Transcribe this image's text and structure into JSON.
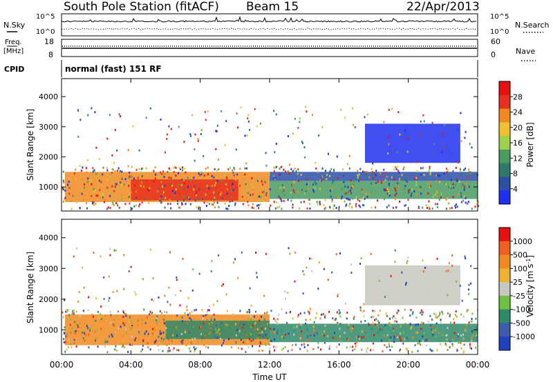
{
  "header": {
    "station": "South Pole Station (fitACF)",
    "beam": "Beam 15",
    "date": "22/Apr/2013"
  },
  "top_panel": {
    "left_label": "N.Sky",
    "right_label": "N.Search",
    "left_ticks": [
      "10^5",
      "10^0"
    ],
    "right_ticks": [
      "10^5",
      "10^0"
    ]
  },
  "freq_panel": {
    "left_label": "Freq.",
    "left_unit": "[MHz]",
    "right_label": "Nave",
    "left_ticks": [
      "18",
      "8"
    ],
    "right_ticks": [
      "60",
      "0"
    ]
  },
  "cpid": {
    "label": "CPID",
    "value": "normal (fast) 151 RF"
  },
  "chart_data": [
    {
      "type": "heatmap",
      "title": "",
      "ylabel": "Slant Range [km]",
      "xlabel": "",
      "yticks": [
        "1000",
        "2000",
        "3000",
        "4000"
      ],
      "ylim": [
        200,
        4600
      ],
      "xlim_hours": [
        0,
        24
      ],
      "colorbar_label": "Power [dB]",
      "colorbar_ticks": [
        "4",
        "8",
        "12",
        "16",
        "20",
        "24",
        "28"
      ],
      "colorbar_colors": [
        "#1e2ff0",
        "#2d4fa8",
        "#2e7a6a",
        "#4a9a60",
        "#9fd24a",
        "#f0c030",
        "#f08a20",
        "#e83020",
        "#e81010"
      ],
      "bands": [
        {
          "t0": 0.2,
          "t1": 12.0,
          "r0": 500,
          "r1": 1500,
          "color": "#f08a20"
        },
        {
          "t0": 4.0,
          "t1": 10.2,
          "r0": 550,
          "r1": 1250,
          "color": "#e83020"
        },
        {
          "t0": 12.0,
          "t1": 24.0,
          "r0": 600,
          "r1": 1200,
          "color": "#4a9a60"
        },
        {
          "t0": 12.0,
          "t1": 24.0,
          "r0": 1200,
          "r1": 1500,
          "color": "#2d4fa8"
        },
        {
          "t0": 17.5,
          "t1": 23.0,
          "r0": 1800,
          "r1": 3100,
          "color": "#1e2ff0"
        }
      ]
    },
    {
      "type": "heatmap",
      "title": "",
      "ylabel": "Slant Range [km]",
      "xlabel": "Time UT",
      "xticks": [
        "00:00",
        "04:00",
        "08:00",
        "12:00",
        "16:00",
        "20:00",
        "00:00"
      ],
      "yticks": [
        "1000",
        "2000",
        "3000",
        "4000"
      ],
      "ylim": [
        200,
        4600
      ],
      "xlim_hours": [
        0,
        24
      ],
      "colorbar_label": "Velocity [m s^-1]",
      "colorbar_ticks": [
        "1000",
        "500",
        "100",
        "25",
        "-25",
        "-100",
        "-500",
        "-1000"
      ],
      "colorbar_colors": [
        "#2040c0",
        "#3c5cb0",
        "#2f8a6a",
        "#70c040",
        "#c8c8c0",
        "#f0b030",
        "#f08a20",
        "#f06020",
        "#e81010"
      ],
      "bands": [
        {
          "t0": 0.2,
          "t1": 12.0,
          "r0": 500,
          "r1": 1500,
          "color": "#f08a20"
        },
        {
          "t0": 6.0,
          "t1": 12.0,
          "r0": 700,
          "r1": 1300,
          "color": "#2f8a6a"
        },
        {
          "t0": 12.0,
          "t1": 24.0,
          "r0": 600,
          "r1": 1200,
          "color": "#2f8a6a"
        },
        {
          "t0": 17.5,
          "t1": 23.0,
          "r0": 1800,
          "r1": 3100,
          "color": "#c8c8c0"
        }
      ]
    }
  ]
}
